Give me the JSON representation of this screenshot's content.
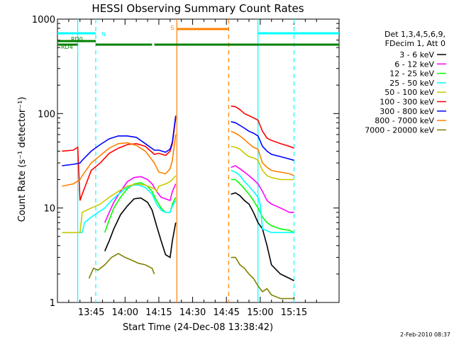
{
  "chart_data": {
    "type": "line",
    "title": "HESSI Observing Summary Count Rates",
    "xlabel": "Start Time (24-Dec-08 13:38:42)",
    "ylabel": "Count Rate (s⁻¹ detector⁻¹)",
    "y_scale": "log",
    "ylim": [
      1,
      1000
    ],
    "xlim_minutes": [
      -15,
      110
    ],
    "x_ticks": [
      {
        "minute": 0,
        "label": "13:45"
      },
      {
        "minute": 15,
        "label": "14:00"
      },
      {
        "minute": 30,
        "label": "14:15"
      },
      {
        "minute": 45,
        "label": "14:30"
      },
      {
        "minute": 60,
        "label": "14:45"
      },
      {
        "minute": 75,
        "label": "15:00"
      },
      {
        "minute": 90,
        "label": "15:15"
      }
    ],
    "y_ticks": [
      {
        "value": 1,
        "label": "1"
      },
      {
        "value": 10,
        "label": "10"
      },
      {
        "value": 100,
        "label": "100"
      },
      {
        "value": 1000,
        "label": "1000"
      }
    ],
    "legend_header": [
      "Det 1,3,4,5,6,9,",
      "FDecim 1, Att 0"
    ],
    "legend_placement": "right, outside plot",
    "series": [
      {
        "name": "3 - 6 keV",
        "color": "#000000",
        "points": [
          [
            6,
            3.5
          ],
          [
            8,
            4.5
          ],
          [
            10,
            6.0
          ],
          [
            13,
            8.5
          ],
          [
            16,
            10.5
          ],
          [
            19,
            12.5
          ],
          [
            22,
            12.8
          ],
          [
            25,
            11.5
          ],
          [
            27,
            9.5
          ],
          [
            29,
            6.5
          ],
          [
            31,
            4.5
          ],
          [
            33,
            3.2
          ],
          [
            35,
            3.0
          ],
          [
            36,
            4.5
          ],
          [
            37.5,
            7
          ]
        ]
      },
      {
        "name": "6 - 12 keV",
        "color": "#ff00ff",
        "points": [
          [
            6,
            7
          ],
          [
            8,
            9
          ],
          [
            10,
            11.5
          ],
          [
            13,
            15
          ],
          [
            16,
            19
          ],
          [
            19,
            21
          ],
          [
            22,
            21.5
          ],
          [
            25,
            20
          ],
          [
            27,
            18
          ],
          [
            29,
            15
          ],
          [
            31,
            13
          ],
          [
            33,
            12.5
          ],
          [
            35,
            12
          ],
          [
            36,
            15
          ],
          [
            37.5,
            18
          ]
        ]
      },
      {
        "name": "12 - 25 keV",
        "color": "#00ff00",
        "points": [
          [
            6,
            5.5
          ],
          [
            8,
            7.5
          ],
          [
            10,
            10
          ],
          [
            13,
            13
          ],
          [
            16,
            16
          ],
          [
            19,
            18
          ],
          [
            22,
            18.5
          ],
          [
            25,
            17
          ],
          [
            27,
            15
          ],
          [
            29,
            12
          ],
          [
            31,
            10
          ],
          [
            33,
            9
          ],
          [
            35,
            9
          ],
          [
            36,
            11
          ],
          [
            37.5,
            13
          ]
        ]
      },
      {
        "name": "25 - 50 keV",
        "color": "#00ffff",
        "points": [
          [
            -13,
            5.5
          ],
          [
            -8,
            5.5
          ],
          [
            -4,
            5.5
          ],
          [
            -3,
            7
          ],
          [
            0,
            8
          ],
          [
            3,
            9
          ],
          [
            6,
            10
          ],
          [
            9,
            12
          ],
          [
            12,
            14
          ],
          [
            15,
            16
          ],
          [
            18,
            17.5
          ],
          [
            21,
            17.5
          ],
          [
            24,
            16.5
          ],
          [
            27,
            14
          ],
          [
            29,
            11
          ],
          [
            31,
            9.5
          ],
          [
            33,
            9
          ],
          [
            35,
            9
          ],
          [
            36,
            10.5
          ],
          [
            37.5,
            12
          ]
        ]
      },
      {
        "name": "50 - 100 keV",
        "color": "#c8c800",
        "points": [
          [
            -13,
            5.5
          ],
          [
            -5,
            5.5
          ],
          [
            -4,
            9
          ],
          [
            0,
            10
          ],
          [
            4,
            11
          ],
          [
            8,
            13
          ],
          [
            12,
            15
          ],
          [
            16,
            17
          ],
          [
            20,
            18
          ],
          [
            24,
            17.5
          ],
          [
            28,
            16
          ],
          [
            29,
            15
          ],
          [
            30,
            17
          ],
          [
            33,
            18
          ],
          [
            35,
            19
          ],
          [
            36,
            20
          ],
          [
            37.5,
            22
          ]
        ]
      },
      {
        "name": "100 - 300 keV",
        "color": "#ff0000",
        "points": [
          [
            -13,
            40
          ],
          [
            -8,
            41
          ],
          [
            -6,
            44
          ],
          [
            -5,
            12
          ],
          [
            -4,
            14
          ],
          [
            0,
            25
          ],
          [
            4,
            30
          ],
          [
            8,
            38
          ],
          [
            12,
            43
          ],
          [
            16,
            47
          ],
          [
            20,
            48
          ],
          [
            24,
            45
          ],
          [
            28,
            37
          ],
          [
            30,
            38
          ],
          [
            33,
            36
          ],
          [
            35,
            40
          ],
          [
            36,
            48
          ],
          [
            37.5,
            90
          ]
        ]
      },
      {
        "name": "300 - 800 keV",
        "color": "#0000ff",
        "points": [
          [
            -13,
            28
          ],
          [
            -8,
            29
          ],
          [
            -5,
            30
          ],
          [
            -4,
            32
          ],
          [
            0,
            40
          ],
          [
            4,
            47
          ],
          [
            8,
            54
          ],
          [
            12,
            58
          ],
          [
            16,
            58
          ],
          [
            20,
            56
          ],
          [
            24,
            48
          ],
          [
            28,
            41
          ],
          [
            30,
            41
          ],
          [
            33,
            39
          ],
          [
            35,
            42
          ],
          [
            36,
            50
          ],
          [
            37.5,
            95
          ]
        ]
      },
      {
        "name": "800 - 7000 keV",
        "color": "#ff8000",
        "points": [
          [
            -13,
            17
          ],
          [
            -8,
            18
          ],
          [
            -5,
            20
          ],
          [
            -4,
            22
          ],
          [
            0,
            30
          ],
          [
            4,
            36
          ],
          [
            8,
            43
          ],
          [
            12,
            48
          ],
          [
            16,
            49
          ],
          [
            20,
            46
          ],
          [
            24,
            40
          ],
          [
            28,
            30
          ],
          [
            30,
            24
          ],
          [
            33,
            23
          ],
          [
            35,
            26
          ],
          [
            36,
            32
          ],
          [
            37.5,
            60
          ]
        ]
      },
      {
        "name": "7000 - 20000 keV",
        "color": "#808000",
        "points": [
          [
            -1,
            1.8
          ],
          [
            1,
            2.3
          ],
          [
            3,
            2.2
          ],
          [
            6,
            2.5
          ],
          [
            9,
            3
          ],
          [
            12,
            3.3
          ],
          [
            15,
            3
          ],
          [
            18,
            2.8
          ],
          [
            21,
            2.6
          ],
          [
            24,
            2.5
          ],
          [
            27,
            2.3
          ],
          [
            28,
            2
          ]
        ]
      }
    ],
    "segments_after_gap": [
      {
        "name": "3 - 6 keV",
        "points": [
          [
            62,
            14
          ],
          [
            64,
            14.5
          ],
          [
            66,
            13.5
          ],
          [
            68,
            12
          ],
          [
            70,
            11
          ],
          [
            72,
            9
          ],
          [
            74,
            7
          ],
          [
            76,
            6
          ],
          [
            78,
            4
          ],
          [
            80,
            2.5
          ],
          [
            84,
            2
          ],
          [
            88,
            1.8
          ],
          [
            90,
            1.7
          ]
        ]
      },
      {
        "name": "6 - 12 keV",
        "points": [
          [
            62,
            27
          ],
          [
            64,
            28
          ],
          [
            66,
            26
          ],
          [
            68,
            24
          ],
          [
            70,
            22
          ],
          [
            72,
            20
          ],
          [
            74,
            18
          ],
          [
            76,
            15
          ],
          [
            78,
            12
          ],
          [
            80,
            11
          ],
          [
            84,
            10
          ],
          [
            88,
            9
          ],
          [
            90,
            9
          ]
        ]
      },
      {
        "name": "12 - 25 keV",
        "points": [
          [
            62,
            20
          ],
          [
            64,
            20
          ],
          [
            66,
            18
          ],
          [
            68,
            16
          ],
          [
            70,
            14
          ],
          [
            72,
            12
          ],
          [
            74,
            10
          ],
          [
            76,
            8
          ],
          [
            78,
            7
          ],
          [
            80,
            6.5
          ],
          [
            84,
            6
          ],
          [
            88,
            5.8
          ],
          [
            90,
            5.5
          ]
        ]
      },
      {
        "name": "25 - 50 keV",
        "points": [
          [
            62,
            25
          ],
          [
            64,
            24
          ],
          [
            66,
            22
          ],
          [
            68,
            19
          ],
          [
            70,
            17
          ],
          [
            72,
            15
          ],
          [
            74,
            13
          ],
          [
            75,
            11
          ],
          [
            76,
            6
          ],
          [
            80,
            5.5
          ],
          [
            84,
            5.5
          ],
          [
            88,
            5.5
          ],
          [
            90,
            5.5
          ]
        ]
      },
      {
        "name": "50 - 100 keV",
        "points": [
          [
            62,
            45
          ],
          [
            64,
            44
          ],
          [
            66,
            42
          ],
          [
            68,
            38
          ],
          [
            70,
            35
          ],
          [
            72,
            34
          ],
          [
            74,
            32
          ],
          [
            76,
            25
          ],
          [
            78,
            22
          ],
          [
            80,
            21
          ],
          [
            84,
            20
          ],
          [
            88,
            20
          ],
          [
            90,
            20
          ]
        ]
      },
      {
        "name": "100 - 300 keV",
        "points": [
          [
            62,
            120
          ],
          [
            64,
            118
          ],
          [
            66,
            110
          ],
          [
            68,
            100
          ],
          [
            70,
            95
          ],
          [
            72,
            90
          ],
          [
            74,
            85
          ],
          [
            76,
            65
          ],
          [
            78,
            55
          ],
          [
            80,
            52
          ],
          [
            84,
            48
          ],
          [
            88,
            45
          ],
          [
            90,
            43
          ]
        ]
      },
      {
        "name": "300 - 800 keV",
        "points": [
          [
            62,
            82
          ],
          [
            64,
            80
          ],
          [
            66,
            75
          ],
          [
            68,
            70
          ],
          [
            70,
            65
          ],
          [
            72,
            62
          ],
          [
            74,
            58
          ],
          [
            76,
            45
          ],
          [
            78,
            40
          ],
          [
            80,
            37
          ],
          [
            84,
            35
          ],
          [
            88,
            33
          ],
          [
            90,
            32
          ]
        ]
      },
      {
        "name": "800 - 7000 keV",
        "points": [
          [
            62,
            65
          ],
          [
            64,
            62
          ],
          [
            66,
            58
          ],
          [
            68,
            53
          ],
          [
            70,
            48
          ],
          [
            72,
            44
          ],
          [
            74,
            42
          ],
          [
            76,
            30
          ],
          [
            78,
            27
          ],
          [
            80,
            25
          ],
          [
            84,
            24
          ],
          [
            88,
            23
          ],
          [
            90,
            22
          ]
        ]
      },
      {
        "name": "7000 - 20000 keV",
        "points": [
          [
            62,
            3
          ],
          [
            64,
            3
          ],
          [
            66,
            2.5
          ],
          [
            68,
            2.3
          ],
          [
            70,
            2
          ],
          [
            72,
            1.8
          ],
          [
            74,
            1.5
          ],
          [
            76,
            1.3
          ],
          [
            78,
            1.4
          ],
          [
            80,
            1.2
          ],
          [
            84,
            1.1
          ],
          [
            88,
            1.1
          ],
          [
            90,
            1.1
          ]
        ]
      }
    ],
    "overlays": [
      {
        "label": "N",
        "color": "#00ffff",
        "segments": [
          [
            -15,
            2
          ],
          [
            74,
            110
          ]
        ]
      },
      {
        "label": "RD0",
        "color": "#008000",
        "segments": [
          [
            -15,
            2
          ]
        ]
      },
      {
        "label": "RD4",
        "color": "#008000",
        "segments": [
          [
            -15,
            -6
          ],
          [
            2,
            27
          ],
          [
            28,
            110
          ]
        ]
      },
      {
        "label": "S",
        "color": "#ff8000",
        "segments": [
          [
            38,
            61
          ]
        ]
      }
    ],
    "vertical_markers": [
      {
        "color": "#00ffff",
        "style": "solid",
        "minute": -6
      },
      {
        "color": "#00ffff",
        "style": "dashed",
        "minute": 2
      },
      {
        "color": "#00ffff",
        "style": "solid",
        "minute": 74
      },
      {
        "color": "#00ffff",
        "style": "dashed",
        "minute": 90
      },
      {
        "color": "#ff8000",
        "style": "solid",
        "minute": 38
      },
      {
        "color": "#ff8000",
        "style": "dashed",
        "minute": 61
      }
    ]
  },
  "footer_date": "2-Feb-2010 08:37"
}
